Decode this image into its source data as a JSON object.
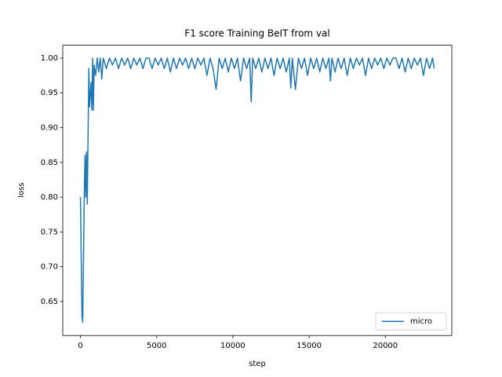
{
  "chart_data": {
    "type": "line",
    "title": "F1 score Training BeIT from val",
    "x_label": "step",
    "y_label": "loss",
    "x": [
      0,
      100,
      150,
      250,
      300,
      350,
      400,
      450,
      550,
      600,
      700,
      750,
      800,
      850,
      900,
      1000,
      1100,
      1200,
      1300,
      1400,
      1500,
      1700,
      1900,
      2100,
      2300,
      2500,
      2700,
      2900,
      3100,
      3300,
      3500,
      3700,
      3900,
      4100,
      4300,
      4500,
      4700,
      4900,
      5100,
      5300,
      5500,
      5700,
      5900,
      6100,
      6300,
      6500,
      6700,
      6900,
      7100,
      7300,
      7500,
      7700,
      7900,
      8100,
      8300,
      8500,
      8700,
      8900,
      9100,
      9300,
      9500,
      9700,
      9900,
      10100,
      10300,
      10500,
      10700,
      10900,
      11100,
      11200,
      11300,
      11500,
      11700,
      11900,
      12100,
      12300,
      12500,
      12700,
      12900,
      13100,
      13300,
      13500,
      13700,
      13800,
      13900,
      14100,
      14300,
      14500,
      14700,
      14900,
      15100,
      15300,
      15500,
      15700,
      15900,
      16100,
      16300,
      16400,
      16500,
      16700,
      16900,
      17100,
      17300,
      17500,
      17700,
      17900,
      18100,
      18300,
      18500,
      18700,
      18900,
      19100,
      19300,
      19500,
      19700,
      19900,
      20100,
      20300,
      20500,
      20700,
      20900,
      21100,
      21300,
      21500,
      21700,
      21900,
      22100,
      22300,
      22500,
      22700,
      22900,
      23100,
      23200
    ],
    "series": [
      {
        "name": "micro",
        "color": "#1f77b4",
        "values": [
          0.8,
          0.63,
          0.62,
          0.8,
          0.86,
          0.8,
          0.865,
          0.79,
          0.985,
          0.93,
          0.965,
          0.925,
          1.0,
          0.925,
          0.99,
          0.975,
          1.0,
          0.98,
          1.0,
          0.97,
          1.0,
          0.985,
          1.0,
          0.99,
          1.0,
          0.985,
          1.0,
          0.99,
          1.0,
          0.985,
          1.0,
          0.99,
          1.0,
          0.985,
          1.0,
          1.0,
          0.985,
          1.0,
          0.99,
          1.0,
          0.985,
          1.0,
          0.98,
          1.0,
          0.985,
          1.0,
          0.99,
          1.0,
          0.985,
          1.0,
          0.985,
          1.0,
          0.99,
          1.0,
          0.975,
          1.0,
          0.985,
          0.955,
          1.0,
          0.985,
          1.0,
          0.98,
          1.0,
          0.985,
          1.0,
          0.967,
          1.0,
          0.985,
          1.0,
          0.937,
          1.0,
          0.985,
          1.0,
          0.98,
          1.0,
          0.985,
          1.0,
          0.975,
          1.0,
          0.985,
          1.0,
          0.98,
          1.0,
          0.957,
          1.0,
          0.955,
          1.0,
          0.985,
          1.0,
          0.975,
          1.0,
          0.985,
          1.0,
          0.98,
          1.0,
          0.985,
          1.0,
          0.967,
          1.0,
          0.98,
          1.0,
          0.985,
          1.0,
          0.975,
          1.0,
          0.985,
          1.0,
          0.99,
          1.0,
          0.975,
          1.0,
          0.985,
          1.0,
          0.99,
          1.0,
          0.985,
          1.0,
          0.99,
          1.0,
          1.0,
          0.985,
          1.0,
          0.98,
          1.0,
          0.985,
          1.0,
          0.99,
          1.0,
          0.975,
          1.0,
          0.985,
          1.0,
          0.985
        ]
      }
    ],
    "xlim": [
      -1160,
      24360
    ],
    "ylim": [
      0.601,
      1.0185
    ],
    "xticks": [
      0,
      5000,
      10000,
      15000,
      20000
    ],
    "yticks": [
      0.65,
      {
        "value": 0.7,
        "label": "0.70"
      },
      0.75,
      {
        "value": 0.8,
        "label": "0.80"
      },
      0.85,
      {
        "value": 0.9,
        "label": "0.90"
      },
      0.95,
      {
        "value": 1.0,
        "label": "1.00"
      }
    ],
    "legend": "lower right"
  }
}
